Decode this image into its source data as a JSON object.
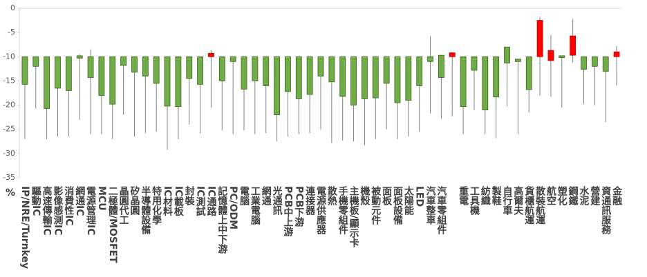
{
  "chart_data": {
    "type": "candlestick",
    "y_label": "%",
    "categories": [
      "IP/NRE/Turnkey",
      "驅動IC",
      "高速傳輸IC",
      "影像感測IC",
      "消費性IC",
      "網通IC",
      "電源管理IC",
      "MCU",
      "二極體/MOSFET",
      "晶圓代工",
      "矽晶圓",
      "半導體設備",
      "特用化學",
      "IC材料",
      "IC載板",
      "封裝",
      "IC測試",
      "IC通路",
      "記憶體上中下游",
      "PC/ODM",
      "電腦",
      "工業電腦",
      "網通",
      "光通訊",
      "PCB中上游",
      "PCB下游",
      "連接器",
      "電源供應器",
      "散熱",
      "手機零組件",
      "主機板/顯示卡",
      "機殼",
      "被動元件",
      "面板",
      "面板設備",
      "太陽能",
      "LED",
      "汽車整車",
      "汽車零組件",
      null,
      "重電",
      "工具機",
      "紡織",
      "製鞋",
      "自行車",
      "高爾夫",
      "貨櫃航運",
      "散裝航運",
      "航空",
      "塑化",
      "鋼鐵",
      "水泥",
      "營建",
      "資通訊服務",
      "金融"
    ],
    "open": [
      -10,
      -10,
      -10,
      -10,
      -10,
      -9.8,
      -10,
      -10,
      -10,
      -10,
      -10,
      -10,
      -10,
      -10,
      -10,
      -10,
      -10,
      -10,
      -10,
      -10,
      -10,
      -10,
      -10,
      -10,
      -10,
      -10,
      -10,
      -10,
      -10,
      -10,
      -10,
      -10,
      -10,
      -10,
      -10,
      -10,
      -10,
      -10,
      -9.7,
      -10,
      -10,
      -10,
      -10,
      -10,
      -8,
      -10.5,
      -10,
      -10,
      -10.8,
      -9.8,
      -9.7,
      -10,
      -10,
      -10,
      -10
    ],
    "close": [
      -15.7,
      -12,
      -20.7,
      -16.5,
      -17,
      -10.3,
      -14.3,
      -18,
      -19.8,
      -11.8,
      -13.2,
      -14,
      -15.5,
      -20.2,
      -20.3,
      -14.5,
      -15.7,
      -9.3,
      -15,
      -11,
      -16.7,
      -15,
      -16,
      -22,
      -17.2,
      -18.7,
      -17.8,
      -14,
      -15.2,
      -18.2,
      -20,
      -18.7,
      -18.5,
      -15.5,
      -19.5,
      -19,
      -16,
      -11,
      -14.3,
      -9.2,
      -20.3,
      -12.8,
      -21,
      -18.3,
      -11.3,
      -11,
      -16.8,
      -2.5,
      -8.7,
      -10.2,
      -5.7,
      -12.6,
      -12,
      -13,
      -9
    ],
    "high": [
      -10,
      -10,
      -10,
      -10,
      -10,
      -9.5,
      -8.5,
      -10,
      -10,
      -10,
      -10,
      -10,
      -10,
      -10,
      -10,
      -10,
      -10,
      -8.7,
      -10,
      -10,
      -10,
      -10,
      -10,
      -10,
      -10,
      -10,
      -10,
      -10,
      -10,
      -10,
      -10,
      -10,
      -10,
      -10,
      -10,
      -10,
      -10,
      -5.8,
      -9.7,
      -9,
      -10,
      -10,
      -10,
      -10,
      -8,
      -10.5,
      -10,
      -1.8,
      -5.5,
      -9.8,
      -2.2,
      -10,
      -10,
      -10,
      -7.8
    ],
    "low": [
      -27,
      -20.7,
      -27,
      -26.5,
      -26.5,
      -23,
      -26,
      -26,
      -27,
      -22,
      -26.5,
      -25.8,
      -25.5,
      -29.2,
      -27,
      -24,
      -25.8,
      -20.5,
      -25.2,
      -26,
      -25.2,
      -26,
      -25.8,
      -27.5,
      -26.5,
      -26,
      -25.8,
      -25,
      -27.8,
      -27.3,
      -27.5,
      -28.3,
      -27,
      -25,
      -27,
      -26.5,
      -25.5,
      -21.7,
      -22.8,
      -22.3,
      -26,
      -21,
      -26,
      -26.8,
      -20.3,
      -26,
      -21.5,
      -18,
      -18.3,
      -20.5,
      -11.2,
      -19.8,
      -20,
      -23.5,
      -16
    ],
    "up_color": "#ff0000",
    "down_color": "#70ad47",
    "ylim": [
      -35,
      0
    ],
    "yticks": [
      0,
      -5,
      -10,
      -15,
      -20,
      -25,
      -30,
      -35
    ]
  }
}
